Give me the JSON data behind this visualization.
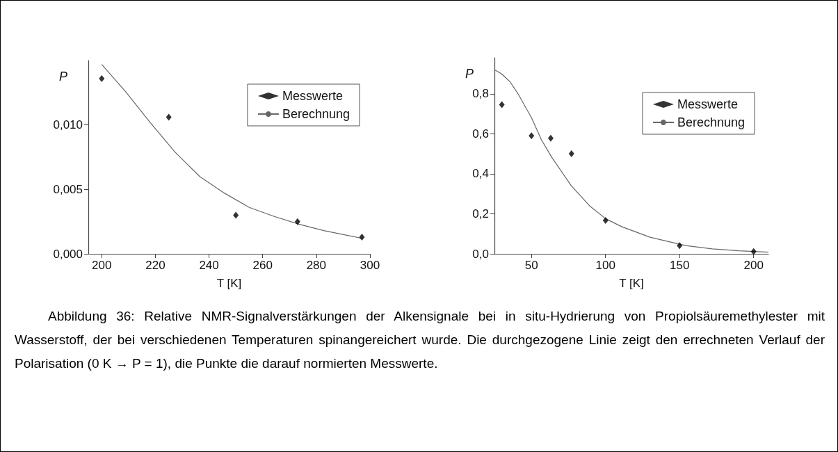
{
  "chart_data": [
    {
      "type": "scatter",
      "xlabel": "T [K]",
      "ylabel": "P",
      "xlim": [
        195,
        300
      ],
      "xticks": [
        200,
        220,
        240,
        260,
        280,
        300
      ],
      "ylim": [
        0,
        0.015
      ],
      "yticks": [
        {
          "value": 0,
          "label": "0,000"
        },
        {
          "value": 0.005,
          "label": "0,005"
        },
        {
          "value": 0.01,
          "label": "0,010"
        }
      ],
      "grid": false,
      "legend": "top right",
      "marker": "diamond",
      "annotations": [
        "Abbildung 36: Relative NMR-Signalverstärkungen der Alkensignale bei in situ-Hydrierung von Propiolsäuremethylester mit Wasserstoff, der bei verschiedenen Temperaturen spinangereichert wurde. Die durchgezogene Linie zeigt den errechneten Verlauf der Polarisation (0 K → P = 1), die Punkte die darauf normierten Messwerte."
      ],
      "series": [
        {
          "name": "Messwerte",
          "color": "#000000",
          "x": [
            200,
            225,
            250,
            273,
            297
          ],
          "values": [
            0.0136,
            0.0106,
            0.003,
            0.0025,
            0.0013
          ]
        },
        {
          "name": "Berechnung",
          "type": "line",
          "marker": "none",
          "color": "#666666",
          "x": [
            200,
            208.8,
            218,
            227.3,
            236.5,
            245.8,
            255,
            264.3,
            273.5,
            282.8,
            297
          ],
          "values": [
            0.0147,
            0.0126,
            0.0102,
            0.0079,
            0.006,
            0.0047,
            0.0036,
            0.0029,
            0.0023,
            0.0018,
            0.0012
          ]
        }
      ]
    },
    {
      "type": "scatter",
      "xlabel": "T [K]",
      "ylabel": "P",
      "xlim": [
        25,
        210
      ],
      "xticks": [
        50,
        100,
        150,
        200
      ],
      "ylim": [
        0,
        0.98
      ],
      "yticks": [
        {
          "value": 0,
          "label": "0,0"
        },
        {
          "value": 0.2,
          "label": "0,2"
        },
        {
          "value": 0.4,
          "label": "0,4"
        },
        {
          "value": 0.6,
          "label": "0,6"
        },
        {
          "value": 0.8,
          "label": "0,8"
        }
      ],
      "grid": false,
      "legend": "top right",
      "marker": "diamond",
      "series": [
        {
          "name": "Messwerte",
          "color": "#000000",
          "x": [
            30,
            50,
            63,
            77,
            100,
            150,
            200
          ],
          "values": [
            0.745,
            0.59,
            0.578,
            0.5,
            0.167,
            0.041,
            0.011
          ]
        },
        {
          "name": "Berechnung",
          "type": "line",
          "marker": "none",
          "color": "#666666",
          "x": [
            25,
            29.7,
            35.5,
            40.9,
            50,
            56.7,
            63.9,
            76.9,
            89.2,
            100,
            110.8,
            130,
            154,
            172,
            190,
            210
          ],
          "values": [
            0.92,
            0.9,
            0.86,
            0.8,
            0.68,
            0.57,
            0.48,
            0.34,
            0.24,
            0.176,
            0.136,
            0.083,
            0.041,
            0.025,
            0.015,
            0.008
          ]
        }
      ]
    }
  ]
}
